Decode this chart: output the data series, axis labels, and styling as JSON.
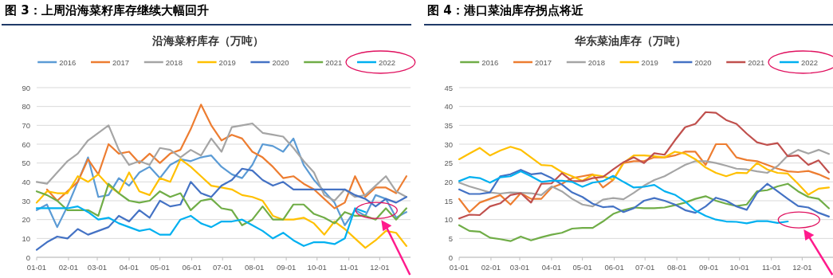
{
  "chart_data": [
    {
      "type": "line",
      "title": "图 3：上周沿海菜籽库存继续大幅回升",
      "subtitle": "沿海菜籽库存（万吨）",
      "legend": "top",
      "grid": "y",
      "marker": "none",
      "line_style": "solid",
      "x": [
        "--01-01",
        "--01-11",
        "--01-21",
        "--01-31",
        "--02-10",
        "--02-20",
        "--03-02",
        "--03-12",
        "--03-22",
        "--04-01",
        "--04-11",
        "--04-21",
        "--05-01",
        "--05-11",
        "--05-21",
        "--05-31",
        "--06-10",
        "--06-20",
        "--06-30",
        "--07-10",
        "--07-20",
        "--07-30",
        "--08-09",
        "--08-19",
        "--08-29",
        "--09-08",
        "--09-18",
        "--09-28",
        "--10-08",
        "--10-18",
        "--10-28",
        "--11-07",
        "--11-17",
        "--11-27",
        "--12-07",
        "--12-17",
        "--12-27"
      ],
      "xlim": [
        "--01-01",
        "--12-31"
      ],
      "xticks": [
        {
          "value": "--01-01",
          "label": "01-01"
        },
        {
          "value": "--02-01",
          "label": "02-01"
        },
        {
          "value": "--03-01",
          "label": "03-01"
        },
        {
          "value": "--04-01",
          "label": "04-01"
        },
        {
          "value": "--05-01",
          "label": "05-01"
        },
        {
          "value": "--06-01",
          "label": "06-01"
        },
        {
          "value": "--07-01",
          "label": "07-01"
        },
        {
          "value": "--08-01",
          "label": "08-01"
        },
        {
          "value": "--09-01",
          "label": "09-01"
        },
        {
          "value": "--10-01",
          "label": "10-01"
        },
        {
          "value": "--11-01",
          "label": "11-01"
        },
        {
          "value": "--12-01",
          "label": "12-01"
        }
      ],
      "ylim": [
        0,
        90
      ],
      "yticks": [
        0,
        10,
        20,
        30,
        40,
        50,
        60,
        70,
        80,
        90
      ],
      "series": [
        {
          "name": "2016",
          "color": "#5b9bd5",
          "values": [
            25,
            28,
            16,
            27,
            40,
            53,
            32,
            33,
            42,
            38,
            45,
            48,
            42,
            49,
            52,
            51,
            53,
            54,
            48,
            44,
            42,
            49,
            60,
            59,
            56,
            63,
            49,
            41,
            35,
            29,
            17,
            25,
            22,
            33,
            31,
            21,
            24
          ]
        },
        {
          "name": "2017",
          "color": "#ed7d31",
          "values": [
            null,
            36,
            30,
            35,
            40,
            52,
            44,
            60,
            55,
            56,
            50,
            55,
            50,
            55,
            57,
            68,
            81,
            70,
            62,
            65,
            63,
            56,
            53,
            48,
            42,
            43,
            39,
            36,
            31,
            26,
            29,
            43,
            32,
            37,
            37,
            34,
            43
          ]
        },
        {
          "name": "2018",
          "color": "#a5a5a5",
          "values": [
            40,
            39,
            45,
            51,
            55,
            62,
            66,
            70,
            57,
            49,
            51,
            49,
            58,
            57,
            53,
            57,
            54,
            63,
            56,
            69,
            70,
            71,
            66,
            65,
            64,
            58,
            51,
            45,
            33,
            30,
            36,
            32,
            33,
            38,
            43,
            35,
            32
          ]
        },
        {
          "name": "2019",
          "color": "#ffc000",
          "values": [
            29,
            35,
            34,
            34,
            43,
            40,
            44,
            38,
            34,
            45,
            35,
            33,
            42,
            40,
            52,
            48,
            43,
            38,
            37,
            36,
            33,
            32,
            30,
            22,
            20,
            20,
            21,
            18,
            12,
            19,
            15,
            10,
            5,
            9,
            14,
            13,
            6
          ]
        },
        {
          "name": "2020",
          "color": "#4472c4",
          "values": [
            4,
            8,
            11,
            10,
            15,
            12,
            14,
            16,
            22,
            19,
            25,
            21,
            30,
            27,
            28,
            40,
            34,
            32,
            38,
            41,
            47,
            46,
            41,
            38,
            40,
            36,
            36,
            36,
            36,
            36,
            36,
            33,
            31,
            27,
            31,
            29,
            32
          ]
        },
        {
          "name": "2021",
          "color": "#70ad47",
          "values": [
            35,
            33,
            30,
            25,
            25,
            25,
            22,
            39,
            34,
            30,
            29,
            30,
            35,
            32,
            34,
            25,
            30,
            31,
            26,
            25,
            17,
            20,
            27,
            20,
            20,
            28,
            28,
            23,
            21,
            18,
            24,
            22,
            22,
            20,
            26,
            20,
            26
          ]
        },
        {
          "name": "2022",
          "color": "#00b0f0",
          "values": [
            26,
            26,
            26,
            26,
            27,
            24,
            20,
            21,
            18,
            16,
            14,
            15,
            12,
            12,
            20,
            22,
            18,
            16,
            19,
            19,
            20,
            17,
            14,
            10,
            13,
            9,
            6,
            8,
            8,
            7,
            10,
            26,
            24,
            null,
            null,
            null,
            null
          ]
        }
      ]
    },
    {
      "type": "line",
      "title": "图 4：港口菜油库存拐点将近",
      "subtitle": "华东菜油库存（万吨）",
      "legend": "top",
      "grid": "y",
      "marker": "none",
      "line_style": "solid",
      "x": [
        "--01-01",
        "--01-11",
        "--01-21",
        "--01-31",
        "--02-10",
        "--02-20",
        "--03-02",
        "--03-12",
        "--03-22",
        "--04-01",
        "--04-11",
        "--04-21",
        "--05-01",
        "--05-11",
        "--05-21",
        "--05-31",
        "--06-10",
        "--06-20",
        "--06-30",
        "--07-10",
        "--07-20",
        "--07-30",
        "--08-09",
        "--08-19",
        "--08-29",
        "--09-08",
        "--09-18",
        "--09-28",
        "--10-08",
        "--10-18",
        "--10-28",
        "--11-07",
        "--11-17",
        "--11-27",
        "--12-07",
        "--12-17",
        "--12-27"
      ],
      "xlim": [
        "--01-01",
        "--12-31"
      ],
      "xticks": [
        {
          "value": "--01-01",
          "label": "01-01"
        },
        {
          "value": "--02-01",
          "label": "02-01"
        },
        {
          "value": "--03-01",
          "label": "03-01"
        },
        {
          "value": "--04-01",
          "label": "04-01"
        },
        {
          "value": "--05-01",
          "label": "05-01"
        },
        {
          "value": "--06-01",
          "label": "06-01"
        },
        {
          "value": "--07-01",
          "label": "07-01"
        },
        {
          "value": "--08-01",
          "label": "08-01"
        },
        {
          "value": "--09-01",
          "label": "09-01"
        },
        {
          "value": "--10-01",
          "label": "10-01"
        },
        {
          "value": "--11-01",
          "label": "11-01"
        },
        {
          "value": "--12-01",
          "label": "12-01"
        }
      ],
      "ylim": [
        0,
        45
      ],
      "yticks": [
        0,
        5,
        10,
        15,
        20,
        25,
        30,
        35,
        40,
        45
      ],
      "series": [
        {
          "name": "2016",
          "color": "#70ad47",
          "values": [
            8.5,
            7,
            6.8,
            5.2,
            4.8,
            4.3,
            5.5,
            4.5,
            5.3,
            6,
            6.5,
            7.6,
            7.8,
            7.8,
            9.5,
            11.5,
            12.5,
            13.2,
            13,
            13,
            13.2,
            13.8,
            14.5,
            15.5,
            16.2,
            15,
            14.2,
            13.6,
            14,
            17.5,
            17.8,
            18.8,
            19.5,
            17.5,
            16,
            15.5,
            13
          ]
        },
        {
          "name": "2017",
          "color": "#ed7d31",
          "values": [
            15.5,
            12,
            14.5,
            15.5,
            16.5,
            14,
            17,
            15.5,
            15.5,
            18.5,
            19.5,
            21,
            21.5,
            22,
            18.5,
            20.5,
            25,
            25.5,
            25.5,
            26.5,
            26.5,
            27,
            28,
            28,
            24.5,
            30,
            30,
            26.5,
            25.8,
            25.5,
            24.5,
            23.5,
            22.8,
            22.6,
            22.9,
            22,
            20.8
          ]
        },
        {
          "name": "2018",
          "color": "#a5a5a5",
          "values": [
            19.8,
            18.8,
            18,
            17.2,
            16.9,
            17.2,
            17.1,
            17,
            16.5,
            18.8,
            17.5,
            15.5,
            14,
            13.5,
            15.3,
            15.7,
            15.4,
            17.1,
            19,
            20.5,
            21.5,
            23,
            24.5,
            25.5,
            25.5,
            25,
            24.3,
            23.5,
            23.3,
            22.8,
            22.4,
            24.2,
            27,
            28.5,
            27.5,
            28.5,
            27.4
          ]
        },
        {
          "name": "2019",
          "color": "#ffc000",
          "values": [
            26,
            27.5,
            29,
            27,
            28.3,
            29.3,
            28.5,
            26.5,
            24.5,
            24.3,
            22.6,
            21.5,
            20.3,
            21.9,
            21.5,
            20.6,
            25,
            27,
            27,
            26.8,
            26.5,
            28,
            27.5,
            26,
            23.8,
            22.4,
            21.5,
            22.4,
            22.3,
            25,
            23.3,
            22.4,
            22.2,
            19.5,
            16.6,
            18.2,
            18.5
          ]
        },
        {
          "name": "2020",
          "color": "#4472c4",
          "values": [
            18,
            16.8,
            16.8,
            17.2,
            21.5,
            22,
            23.2,
            22,
            22.3,
            21,
            19.3,
            17.2,
            16,
            14.2,
            13.3,
            13.5,
            12,
            13,
            15,
            15.7,
            15,
            14,
            12.5,
            11.8,
            13.5,
            15.8,
            15,
            13.5,
            12.6,
            17,
            19.5,
            17.5,
            15.5,
            13.6,
            13.2,
            11.8,
            10.8
          ]
        },
        {
          "name": "2021",
          "color": "#c0504d",
          "values": [
            10.3,
            11.3,
            11.2,
            13.5,
            14.3,
            16.5,
            17,
            14.5,
            19.5,
            19.6,
            22.3,
            20.2,
            20.2,
            21,
            21.3,
            23.3,
            25.2,
            26.5,
            25,
            27.6,
            27.2,
            31,
            34.5,
            35.4,
            38.5,
            38.3,
            36.4,
            35.4,
            32.8,
            30.5,
            29.8,
            30.3,
            26.8,
            27,
            24.5,
            25.7,
            22.5
          ]
        },
        {
          "name": "2022",
          "color": "#00b0f0",
          "values": [
            20.2,
            21.3,
            21,
            19.8,
            21.2,
            21.5,
            22.8,
            21.5,
            20,
            20.3,
            20.3,
            20,
            18.7,
            19.8,
            20.2,
            21.6,
            20,
            18.5,
            18.7,
            19.2,
            17.5,
            16.6,
            14.8,
            12.4,
            11,
            10,
            9.5,
            9.4,
            9,
            9.6,
            9.6,
            9.1,
            9.5,
            null,
            null,
            null,
            null
          ]
        }
      ]
    }
  ]
}
